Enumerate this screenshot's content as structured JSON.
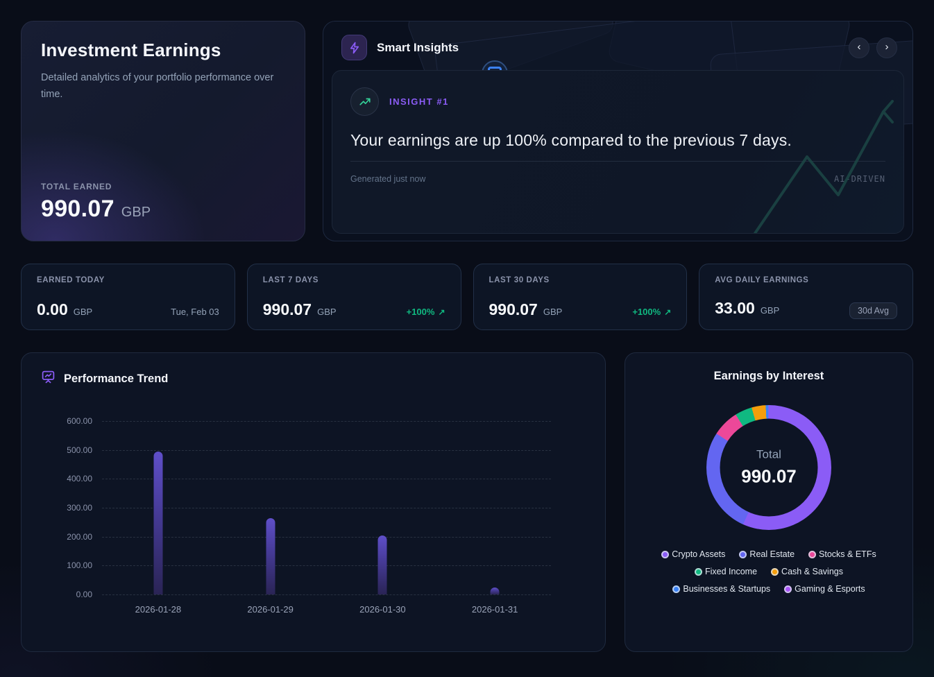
{
  "hero": {
    "title": "Investment Earnings",
    "description": "Detailed analytics of your portfolio performance over time.",
    "total_label": "TOTAL EARNED",
    "total_value": "990.07",
    "currency": "GBP"
  },
  "insights": {
    "title": "Smart Insights",
    "prev_icon": "‹",
    "next_icon": "›",
    "badge": "INSIGHT #1",
    "headline": "Your earnings are up 100% compared to the previous 7 days.",
    "generated": "Generated just now",
    "tag": "AI-DRIVEN"
  },
  "stats": [
    {
      "label": "EARNED TODAY",
      "value": "0.00",
      "currency": "GBP",
      "extra": "Tue, Feb 03"
    },
    {
      "label": "LAST 7 DAYS",
      "value": "990.07",
      "currency": "GBP",
      "extra": "+100%",
      "arrow": "↗"
    },
    {
      "label": "LAST 30 DAYS",
      "value": "990.07",
      "currency": "GBP",
      "extra": "+100%",
      "arrow": "↗"
    },
    {
      "label": "AVG DAILY EARNINGS",
      "value": "33.00",
      "currency": "GBP",
      "extra": "30d Avg"
    }
  ],
  "chart_data": [
    {
      "type": "bar",
      "title": "Performance Trend",
      "categories": [
        "2026-01-28",
        "2026-01-29",
        "2026-01-30",
        "2026-01-31"
      ],
      "values": [
        495,
        265,
        205,
        25.07
      ],
      "ylim": [
        0,
        600
      ],
      "yticks": [
        "600.00",
        "500.00",
        "400.00",
        "300.00",
        "200.00",
        "100.00",
        "0.00"
      ],
      "grid": true,
      "bar_color": "#4c3d99"
    },
    {
      "type": "pie",
      "title": "Earnings by Interest",
      "center_label": "Total",
      "center_value": "990.07",
      "legend_position": "bottom",
      "segments": [
        {
          "label": "Crypto Assets",
          "value": 562.0,
          "color": "#8b5cf6"
        },
        {
          "label": "Real Estate",
          "value": 271.0,
          "color": "#6366f1"
        },
        {
          "label": "Stocks & ETFs",
          "value": 69.0,
          "color": "#ec4899"
        },
        {
          "label": "Fixed Income",
          "value": 44.0,
          "color": "#10b981"
        },
        {
          "label": "Cash & Savings",
          "value": 36.0,
          "color": "#f59e0b"
        },
        {
          "label": "Businesses & Startups",
          "value": 7.5,
          "color": "#3b82f6"
        },
        {
          "label": "Gaming & Esports",
          "value": 0.57,
          "color": "#a855f7"
        }
      ]
    }
  ],
  "colors": {
    "accent_purple": "#8b5cf6",
    "positive_green": "#10b981",
    "card_bg": "#0d1424",
    "page_bg": "#090d18"
  }
}
